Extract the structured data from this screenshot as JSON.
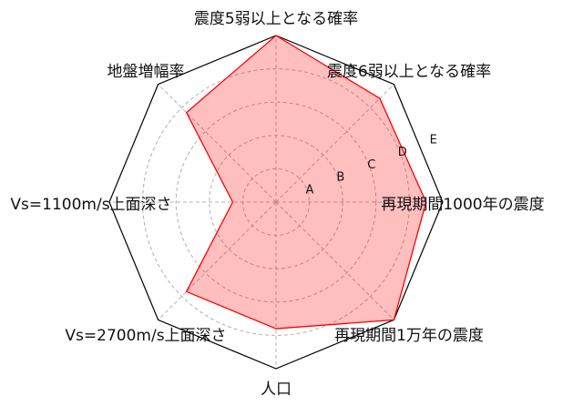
{
  "chart_data": {
    "type": "radar",
    "axes": [
      "震度5弱以上となる確率",
      "震度6弱以上となる確率",
      "再現期間1000年の震度",
      "再現期間1万年の震度",
      "人口",
      "Vs=2700m/s上面深さ",
      "Vs=1100m/s上面深さ",
      "地盤増幅率"
    ],
    "levels": [
      "A",
      "B",
      "C",
      "D",
      "E"
    ],
    "range": [
      0,
      5
    ],
    "values": [
      5.0,
      4.4,
      4.5,
      5.0,
      3.8,
      3.8,
      1.3,
      3.8
    ],
    "grid": true,
    "colors": {
      "fill": "#ff0000",
      "fill_opacity": 0.25,
      "line": "#ff0000",
      "outer": "#000000",
      "grid": "#b0b0b0"
    }
  }
}
